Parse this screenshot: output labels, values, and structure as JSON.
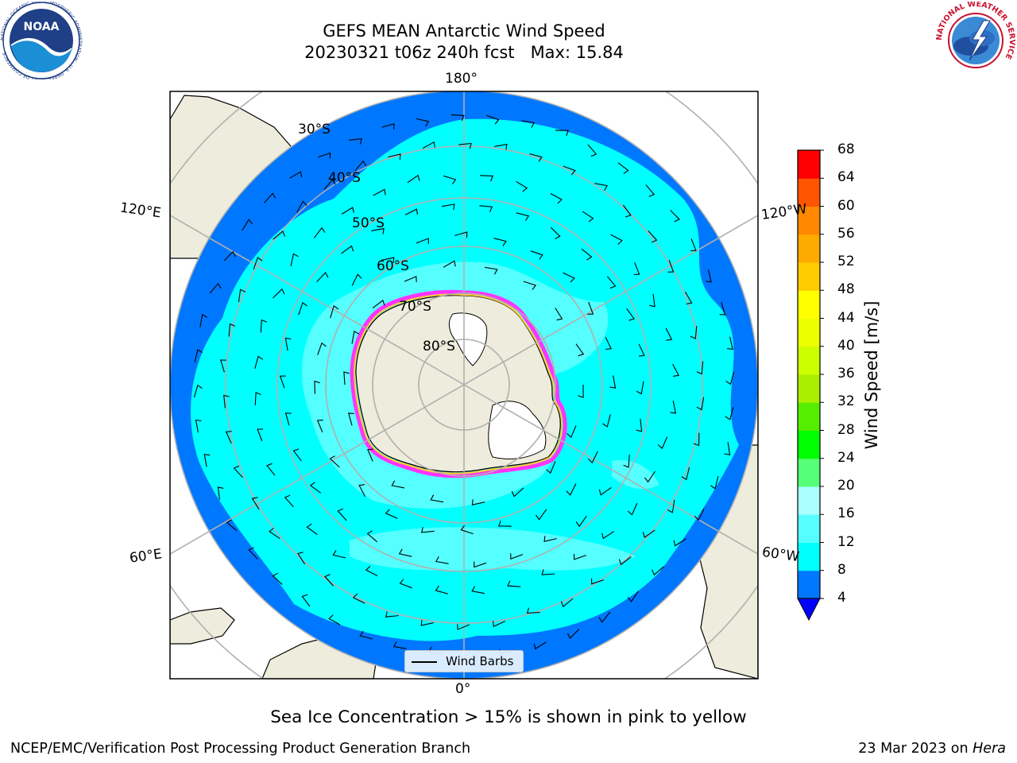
{
  "title": {
    "line1": "GEFS MEAN Antarctic Wind Speed",
    "line2": "20230321 t06z 240h fcst   Max: 15.84"
  },
  "map": {
    "projection": "south-polar-stereographic",
    "longitude_labels": {
      "top": "180°",
      "bottom": "0°",
      "upper_left": "120°E",
      "lower_left": "60°E",
      "upper_right": "120°W",
      "lower_right": "60°W"
    },
    "latitude_labels": [
      "30°S",
      "40°S",
      "50°S",
      "60°S",
      "70°S",
      "80°S"
    ],
    "colors": {
      "land": "#eeecdc",
      "ice_sheet": "#ffffff",
      "sea_ice_edge": [
        "#ff33ff",
        "#ffcc33"
      ],
      "grid": "#b0b0b0"
    }
  },
  "legend": {
    "label": "Wind Barbs"
  },
  "colorbar": {
    "label": "Wind Speed [m/s]",
    "ticks": [
      "4",
      "8",
      "12",
      "16",
      "20",
      "24",
      "28",
      "32",
      "36",
      "40",
      "44",
      "48",
      "52",
      "56",
      "60",
      "64",
      "68"
    ],
    "under_color": "#0000ff",
    "colors": [
      "#0077ff",
      "#00ffff",
      "#55ffff",
      "#aaffff",
      "#55ff77",
      "#00ff00",
      "#55ee00",
      "#aaee00",
      "#ccff00",
      "#eeff00",
      "#ffff00",
      "#ffcc00",
      "#ffaa00",
      "#ff8800",
      "#ff5500",
      "#ff0000"
    ]
  },
  "subtitle": "Sea Ice Concentration > 15% is shown in pink to yellow",
  "footer": {
    "left": "NCEP/EMC/Verification Post Processing Product Generation Branch",
    "date": "23 Mar 2023 on",
    "machine": "Hera"
  },
  "logos": {
    "noaa": "NOAA",
    "noaa_ring_text": "NATIONAL OCEANIC AND ATMOSPHERIC ADMINISTRATION · U.S. DEPARTMENT OF COMMERCE",
    "nws_ring_text": "NATIONAL WEATHER SERVICE"
  }
}
